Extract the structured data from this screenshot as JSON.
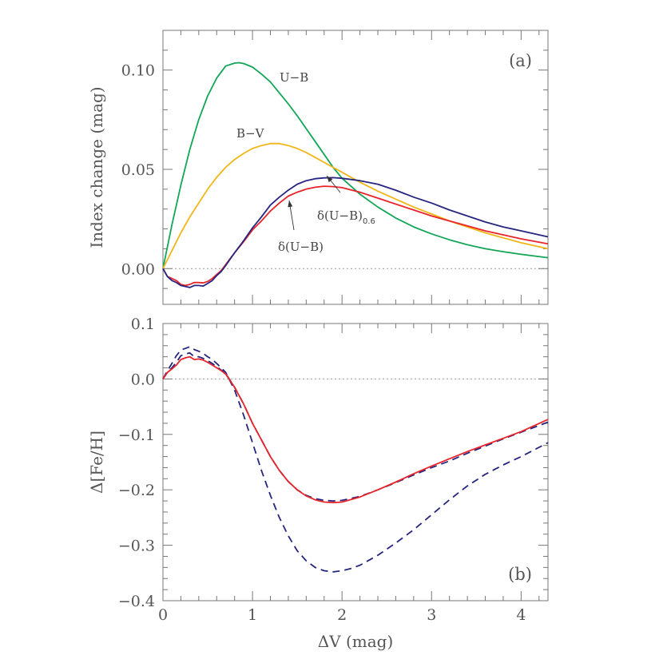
{
  "chart_data": [
    {
      "type": "line",
      "panel_label": "(a)",
      "ylabel": "Index change (mag)",
      "xlabel": "",
      "xlim": [
        0,
        4.3
      ],
      "ylim": [
        -0.018,
        0.12
      ],
      "xticks": [
        0,
        1,
        2,
        3,
        4
      ],
      "yticks": [
        0.0,
        0.05,
        0.1
      ],
      "ytick_labels": [
        "0.00",
        "0.05",
        "0.10"
      ],
      "zero_line": true,
      "series": [
        {
          "name": "U−B",
          "color": "#13a657",
          "dash": "solid",
          "x": [
            0,
            0.1,
            0.2,
            0.3,
            0.4,
            0.5,
            0.6,
            0.7,
            0.8,
            0.85,
            0.9,
            1.0,
            1.1,
            1.2,
            1.3,
            1.4,
            1.5,
            1.6,
            1.7,
            1.8,
            1.9,
            2.0,
            2.2,
            2.4,
            2.6,
            2.8,
            3.0,
            3.2,
            3.4,
            3.6,
            3.8,
            4.0,
            4.3
          ],
          "y": [
            0.0,
            0.022,
            0.042,
            0.06,
            0.075,
            0.087,
            0.096,
            0.102,
            0.1035,
            0.1037,
            0.1033,
            0.1015,
            0.098,
            0.094,
            0.0885,
            0.083,
            0.077,
            0.0705,
            0.064,
            0.0575,
            0.051,
            0.0455,
            0.0375,
            0.031,
            0.0255,
            0.021,
            0.0175,
            0.0145,
            0.012,
            0.01,
            0.0085,
            0.0072,
            0.0055
          ]
        },
        {
          "name": "B−V",
          "color": "#f0b619",
          "dash": "solid",
          "x": [
            0,
            0.1,
            0.2,
            0.3,
            0.4,
            0.5,
            0.6,
            0.7,
            0.8,
            0.9,
            1.0,
            1.1,
            1.2,
            1.3,
            1.4,
            1.5,
            1.6,
            1.7,
            1.8,
            1.9,
            2.0,
            2.2,
            2.4,
            2.6,
            2.8,
            3.0,
            3.2,
            3.4,
            3.6,
            3.8,
            4.0,
            4.3
          ],
          "y": [
            0.0,
            0.009,
            0.018,
            0.026,
            0.033,
            0.04,
            0.046,
            0.051,
            0.055,
            0.058,
            0.0605,
            0.062,
            0.063,
            0.063,
            0.062,
            0.0605,
            0.0585,
            0.056,
            0.0535,
            0.051,
            0.0485,
            0.0435,
            0.039,
            0.035,
            0.031,
            0.0275,
            0.024,
            0.021,
            0.018,
            0.0155,
            0.013,
            0.01
          ]
        },
        {
          "name": "δ(U−B)",
          "color": "#e8242a",
          "dash": "solid",
          "x": [
            0,
            0.05,
            0.1,
            0.15,
            0.2,
            0.25,
            0.3,
            0.35,
            0.4,
            0.45,
            0.5,
            0.55,
            0.6,
            0.65,
            0.7,
            0.8,
            0.9,
            1.0,
            1.1,
            1.2,
            1.3,
            1.4,
            1.5,
            1.6,
            1.7,
            1.8,
            1.9,
            2.0,
            2.2,
            2.4,
            2.6,
            2.8,
            3.0,
            3.2,
            3.4,
            3.6,
            3.8,
            4.0,
            4.3
          ],
          "y": [
            0.0,
            -0.004,
            -0.005,
            -0.006,
            -0.008,
            -0.0085,
            -0.008,
            -0.007,
            -0.007,
            -0.0072,
            -0.0065,
            -0.005,
            -0.003,
            -0.001,
            0.002,
            0.008,
            0.0135,
            0.0195,
            0.024,
            0.029,
            0.033,
            0.0365,
            0.0385,
            0.04,
            0.041,
            0.0415,
            0.0413,
            0.0408,
            0.0385,
            0.0355,
            0.0325,
            0.0295,
            0.0265,
            0.024,
            0.0215,
            0.019,
            0.017,
            0.015,
            0.0125
          ]
        },
        {
          "name": "δ(U−B)0.6",
          "color": "#26257f",
          "dash": "solid",
          "x": [
            0,
            0.05,
            0.1,
            0.15,
            0.2,
            0.25,
            0.3,
            0.35,
            0.4,
            0.45,
            0.5,
            0.55,
            0.6,
            0.65,
            0.7,
            0.8,
            0.9,
            1.0,
            1.1,
            1.2,
            1.3,
            1.4,
            1.5,
            1.6,
            1.7,
            1.8,
            1.9,
            2.0,
            2.2,
            2.4,
            2.6,
            2.8,
            3.0,
            3.2,
            3.4,
            3.6,
            3.8,
            4.0,
            4.3
          ],
          "y": [
            0.0,
            -0.004,
            -0.006,
            -0.007,
            -0.0085,
            -0.009,
            -0.0095,
            -0.0085,
            -0.0085,
            -0.0088,
            -0.0075,
            -0.006,
            -0.0035,
            -0.0015,
            0.0015,
            0.008,
            0.014,
            0.0205,
            0.026,
            0.032,
            0.036,
            0.0395,
            0.0425,
            0.0443,
            0.0453,
            0.0457,
            0.0458,
            0.0455,
            0.0443,
            0.0425,
            0.0395,
            0.036,
            0.033,
            0.0295,
            0.0265,
            0.0235,
            0.021,
            0.019,
            0.016
          ]
        }
      ],
      "annotations": [
        {
          "text": "U−B",
          "for": "U−B"
        },
        {
          "text": "B−V",
          "for": "B−V"
        },
        {
          "text": "δ(U−B)",
          "for": "δ(U−B)"
        },
        {
          "text": "δ(U−B)",
          "subscript": "0.6",
          "for": "δ(U−B)0.6"
        }
      ]
    },
    {
      "type": "line",
      "panel_label": "(b)",
      "ylabel": "Δ[Fe/H]",
      "xlabel": "ΔV (mag)",
      "xlim": [
        0,
        4.3
      ],
      "ylim": [
        -0.4,
        0.1
      ],
      "xticks": [
        0,
        1,
        2,
        3,
        4
      ],
      "xtick_labels": [
        "0",
        "1",
        "2",
        "3",
        "4"
      ],
      "yticks": [
        -0.4,
        -0.3,
        -0.2,
        -0.1,
        0.0,
        0.1
      ],
      "ytick_labels": [
        "−0.4",
        "−0.3",
        "−0.2",
        "−0.1",
        "0.0",
        "0.1"
      ],
      "zero_line": true,
      "series": [
        {
          "name": "deep dashed",
          "color": "#26257f",
          "dash": "dashed",
          "x": [
            0,
            0.05,
            0.1,
            0.15,
            0.2,
            0.25,
            0.3,
            0.35,
            0.4,
            0.45,
            0.5,
            0.55,
            0.6,
            0.65,
            0.7,
            0.8,
            0.9,
            1.0,
            1.1,
            1.2,
            1.3,
            1.4,
            1.5,
            1.6,
            1.7,
            1.8,
            1.9,
            2.0,
            2.1,
            2.2,
            2.4,
            2.6,
            2.8,
            3.0,
            3.2,
            3.4,
            3.6,
            3.8,
            4.0,
            4.3
          ],
          "y": [
            0.0,
            0.015,
            0.028,
            0.042,
            0.052,
            0.055,
            0.058,
            0.053,
            0.05,
            0.046,
            0.04,
            0.035,
            0.028,
            0.02,
            0.012,
            -0.02,
            -0.065,
            -0.115,
            -0.165,
            -0.21,
            -0.25,
            -0.283,
            -0.31,
            -0.328,
            -0.34,
            -0.346,
            -0.348,
            -0.346,
            -0.342,
            -0.336,
            -0.318,
            -0.296,
            -0.272,
            -0.245,
            -0.218,
            -0.193,
            -0.172,
            -0.155,
            -0.14,
            -0.115
          ]
        },
        {
          "name": "shallow dashed",
          "color": "#26257f",
          "dash": "dashed",
          "x": [
            0,
            0.05,
            0.1,
            0.15,
            0.2,
            0.25,
            0.3,
            0.35,
            0.4,
            0.45,
            0.5,
            0.55,
            0.6,
            0.65,
            0.7,
            0.8,
            0.9,
            1.0,
            1.1,
            1.2,
            1.3,
            1.4,
            1.5,
            1.6,
            1.7,
            1.8,
            1.9,
            2.0,
            2.2,
            2.4,
            2.6,
            2.8,
            3.0,
            3.2,
            3.4,
            3.6,
            3.8,
            4.0,
            4.3
          ],
          "y": [
            0.0,
            0.012,
            0.02,
            0.03,
            0.042,
            0.045,
            0.047,
            0.04,
            0.04,
            0.037,
            0.033,
            0.028,
            0.022,
            0.016,
            0.01,
            -0.015,
            -0.045,
            -0.08,
            -0.11,
            -0.14,
            -0.165,
            -0.185,
            -0.2,
            -0.21,
            -0.216,
            -0.219,
            -0.22,
            -0.219,
            -0.212,
            -0.2,
            -0.187,
            -0.173,
            -0.16,
            -0.148,
            -0.134,
            -0.121,
            -0.108,
            -0.096,
            -0.078
          ]
        },
        {
          "name": "solid",
          "color": "#e8242a",
          "dash": "solid",
          "x": [
            0,
            0.05,
            0.1,
            0.15,
            0.2,
            0.25,
            0.3,
            0.35,
            0.4,
            0.45,
            0.5,
            0.55,
            0.6,
            0.65,
            0.7,
            0.8,
            0.9,
            1.0,
            1.1,
            1.2,
            1.3,
            1.4,
            1.5,
            1.6,
            1.7,
            1.8,
            1.9,
            2.0,
            2.2,
            2.4,
            2.6,
            2.8,
            3.0,
            3.2,
            3.4,
            3.6,
            3.8,
            4.0,
            4.3
          ],
          "y": [
            0.0,
            0.012,
            0.018,
            0.025,
            0.035,
            0.038,
            0.04,
            0.035,
            0.036,
            0.034,
            0.03,
            0.025,
            0.02,
            0.015,
            0.009,
            -0.015,
            -0.045,
            -0.08,
            -0.11,
            -0.14,
            -0.165,
            -0.185,
            -0.2,
            -0.211,
            -0.218,
            -0.222,
            -0.223,
            -0.222,
            -0.213,
            -0.2,
            -0.186,
            -0.171,
            -0.157,
            -0.144,
            -0.131,
            -0.119,
            -0.107,
            -0.095,
            -0.073
          ]
        }
      ]
    }
  ]
}
